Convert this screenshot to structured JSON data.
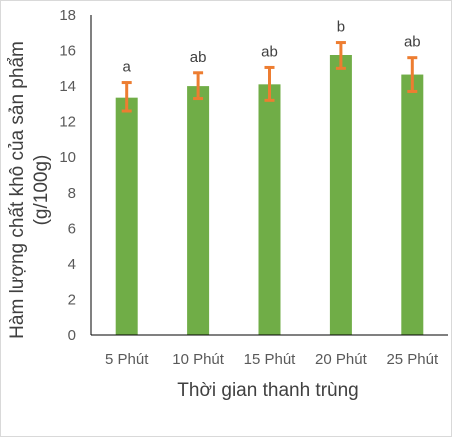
{
  "chart_data": {
    "type": "bar",
    "categories": [
      "5 Phút",
      "10 Phút",
      "15 Phút",
      "20 Phút",
      "25 Phút"
    ],
    "values": [
      13.35,
      14.0,
      14.1,
      15.75,
      14.65
    ],
    "error_low": [
      12.6,
      13.3,
      13.2,
      15.0,
      13.7
    ],
    "error_high": [
      14.2,
      14.75,
      15.05,
      16.45,
      15.6
    ],
    "significance_labels": [
      "a",
      "ab",
      "ab",
      "b",
      "ab"
    ],
    "xlabel": "Thời gian thanh trùng",
    "ylabel_line1": "Hàm lượng chất khô của sản phẩm",
    "ylabel_line2": "(g/100g)",
    "ylim": [
      0,
      18
    ],
    "yticks": [
      0,
      2,
      4,
      6,
      8,
      10,
      12,
      14,
      16,
      18
    ],
    "grid": false,
    "legend": "none",
    "colors": {
      "bar": "#70ad47",
      "error": "#ed7d31",
      "axis": "#000000"
    }
  }
}
